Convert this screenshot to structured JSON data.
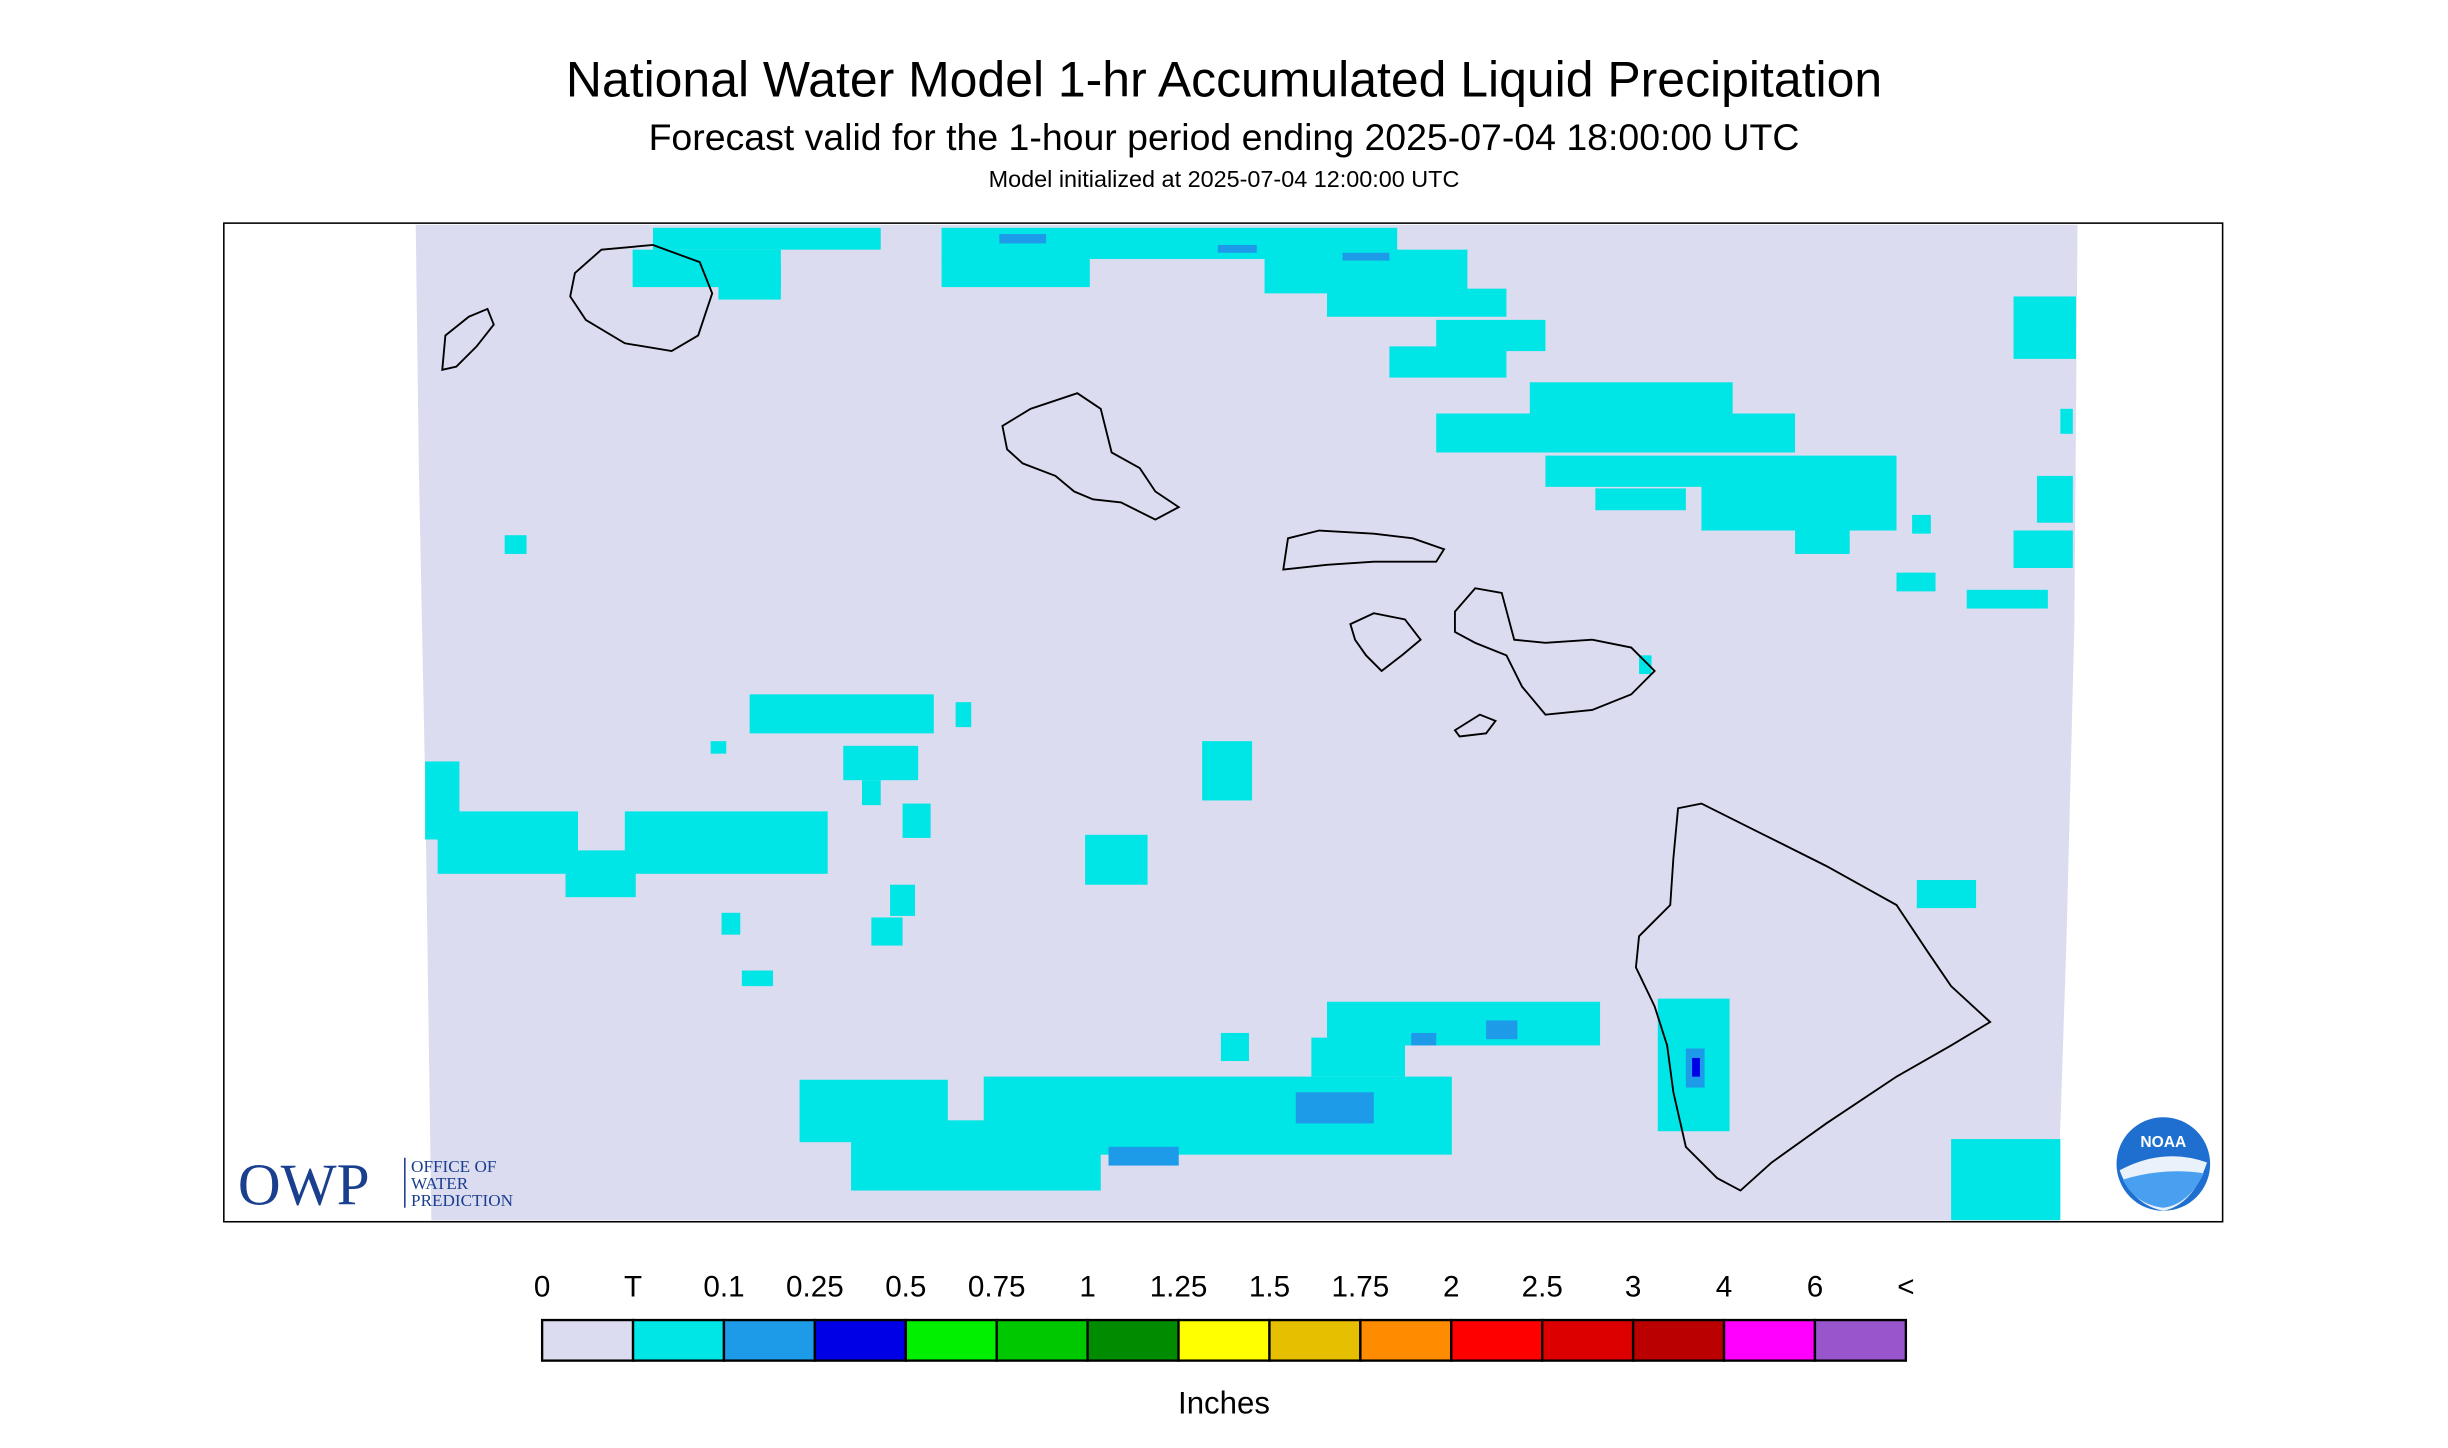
{
  "header": {
    "title": "National Water Model 1-hr Accumulated Liquid Precipitation",
    "subtitle": "Forecast valid for the 1-hour period ending 2025-07-04 18:00:00 UTC",
    "init": "Model initialized at 2025-07-04 12:00:00 UTC"
  },
  "legend": {
    "labels": [
      "0",
      "T",
      "0.1",
      "0.25",
      "0.5",
      "0.75",
      "1",
      "1.25",
      "1.5",
      "1.75",
      "2",
      "2.5",
      "3",
      "4",
      "6",
      "<"
    ],
    "colors": [
      "#dcdcf0",
      "#00e5e5",
      "#1e9be8",
      "#0000e6",
      "#00f000",
      "#00c800",
      "#008c00",
      "#ffff00",
      "#e6bf00",
      "#ff8c00",
      "#ff0000",
      "#dc0000",
      "#bb0000",
      "#ff00ff",
      "#9955cc"
    ],
    "unit": "Inches"
  },
  "logos": {
    "owp": "OWP",
    "owp_lines": [
      "OFFICE OF",
      "WATER",
      "PREDICTION"
    ],
    "noaa": "NOAA"
  }
}
